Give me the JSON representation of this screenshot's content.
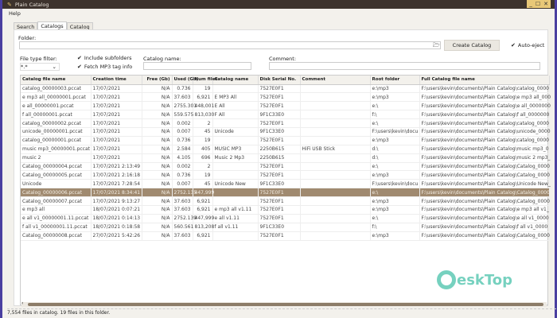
{
  "window": {
    "title": "Plain Catalog",
    "app_icon": "feather-icon",
    "controls": [
      "_",
      "☐",
      "✕"
    ]
  },
  "menu": {
    "items": [
      "Help"
    ]
  },
  "tabs": [
    "Search",
    "Catalogs",
    "Catalog"
  ],
  "form": {
    "folder_label": "Folder:",
    "folder_value": "",
    "browse_icon": "folder-open-icon",
    "create_button": "Create Catalog",
    "auto_eject": "Auto-eject",
    "auto_eject_checked": true,
    "file_type_label": "File type filter:",
    "file_type_value": "*.*",
    "include_subfolders": "Include subfolders",
    "include_subfolders_checked": true,
    "fetch_mp3": "Fetch MP3 tag info",
    "fetch_mp3_checked": true,
    "catalog_name_label": "Catalog name:",
    "catalog_name_value": "",
    "comment_label": "Comment:",
    "comment_value": ""
  },
  "table": {
    "columns": [
      "Catalog file name",
      "Creation time",
      "Free (Gb)",
      "Used (Gb)",
      "Num files",
      "Catalog name",
      "Disk Serial No.",
      "Comment",
      "Root folder",
      "Full Catalog file name"
    ],
    "selected_row": 12,
    "rows": [
      [
        "catalog_00000003.pccat",
        "17/07/2021",
        "N/A",
        "0.736",
        "19",
        "",
        "7527E0F1",
        "",
        "e:\\mp3",
        "F:\\users\\kevin\\documents\\Plain Catalog\\catalog_0000"
      ],
      [
        "e mp3 all_00000001.pccat",
        "17/07/2021",
        "N/A",
        "37.603",
        "6,921",
        "E MP3 All",
        "7527E0F1",
        "",
        "e:\\mp3",
        "F:\\users\\kevin\\documents\\Plain Catalog\\e mp3 all_000"
      ],
      [
        "e all_00000001.pccat",
        "17/07/2021",
        "N/A",
        "2755.301",
        "448,001",
        "E All",
        "7527E0F1",
        "",
        "e:\\",
        "F:\\users\\kevin\\documents\\Plain Catalog\\e all_0000000"
      ],
      [
        "f all_00000001.pccat",
        "17/07/2021",
        "N/A",
        "559.575",
        "813,030",
        "F All",
        "9F1C33E0",
        "",
        "f:\\",
        "F:\\users\\kevin\\documents\\Plain Catalog\\f all_0000000"
      ],
      [
        "catalog_00000002.pccat",
        "17/07/2021",
        "N/A",
        "0.002",
        "2",
        "",
        "7527E0F1",
        "",
        "e:\\",
        "F:\\users\\kevin\\documents\\Plain Catalog\\catalog_0000"
      ],
      [
        "unicode_00000001.pccat",
        "17/07/2021",
        "N/A",
        "0.007",
        "45",
        "Unicode",
        "9F1C33E0",
        "",
        "F:\\users\\kevin\\docu",
        "F:\\users\\kevin\\documents\\Plain Catalog\\unicode_0000"
      ],
      [
        "catalog_00000001.pccat",
        "17/07/2021",
        "N/A",
        "0.736",
        "19",
        "",
        "7527E0F1",
        "",
        "e:\\mp3",
        "F:\\users\\kevin\\documents\\Plain Catalog\\catalog_0000"
      ],
      [
        "music mp3_00000001.pccat",
        "17/07/2021",
        "N/A",
        "2.584",
        "405",
        "MUSIC MP3",
        "2250B615",
        "HiFi USB Stick",
        "d:\\",
        "F:\\users\\kevin\\documents\\Plain Catalog\\music mp3_0"
      ],
      [
        "music 2",
        "17/07/2021",
        "N/A",
        "4.105",
        "696",
        "Music 2 Mp3",
        "2250B615",
        "",
        "d:\\",
        "F:\\users\\kevin\\documents\\Plain Catalog\\music 2 mp3_"
      ],
      [
        "Catalog_00000004.pccat",
        "17/07/2021 2:13:49",
        "N/A",
        "0.002",
        "2",
        "",
        "7527E0F1",
        "",
        "e:\\",
        "F:\\users\\kevin\\documents\\Plain Catalog\\Catalog_0000"
      ],
      [
        "Catalog_00000005.pccat",
        "17/07/2021 2:16:18",
        "N/A",
        "0.736",
        "19",
        "",
        "7527E0F1",
        "",
        "e:\\mp3",
        "F:\\users\\kevin\\documents\\Plain Catalog\\Catalog_0000"
      ],
      [
        "Unicode",
        "17/07/2021 7:28:54",
        "N/A",
        "0.007",
        "45",
        "Unicode New",
        "9F1C33E0",
        "",
        "F:\\users\\kevin\\docu",
        "F:\\users\\kevin\\documents\\Plain Catalog\\Unicode New_"
      ],
      [
        "Catalog_00000006.pccat",
        "17/07/2021 8:34:41",
        "N/A",
        "2752.135",
        "447,999",
        "",
        "7527E0F1",
        "",
        "e:\\",
        "F:\\users\\kevin\\documents\\Plain Catalog\\Catalog_0000"
      ],
      [
        "Catalog_00000007.pccat",
        "17/07/2021 9:13:27",
        "N/A",
        "37.603",
        "6,921",
        "",
        "7527E0F1",
        "",
        "e:\\mp3",
        "F:\\users\\kevin\\documents\\Plain Catalog\\Catalog_0000"
      ],
      [
        "e mp3 all",
        "18/07/2021 0:07:21",
        "N/A",
        "37.603",
        "6,921",
        "e mp3 all v1.11",
        "7527E0F1",
        "",
        "e:\\mp3",
        "F:\\users\\kevin\\documents\\Plain Catalog\\e mp3 all v1_"
      ],
      [
        "e all v1_00000001.11.pccat",
        "18/07/2021 0:14:13",
        "N/A",
        "2752.139",
        "447,999",
        "e all v1.11",
        "7527E0F1",
        "",
        "e:\\",
        "F:\\users\\kevin\\documents\\Plain Catalog\\e all v1_0000"
      ],
      [
        "f all v1_00000001.11.pccat",
        "18/07/2021 0:18:58",
        "N/A",
        "560.561",
        "813,208",
        "f all v1.11",
        "9F1C33E0",
        "",
        "f:\\",
        "F:\\users\\kevin\\documents\\Plain Catalog\\f all v1_0000"
      ],
      [
        "Catalog_00000008.pccat",
        "27/07/2021 5:42:26",
        "N/A",
        "37.603",
        "6,921",
        "",
        "7527E0F1",
        "",
        "e:\\mp3",
        "F:\\users\\kevin\\documents\\Plain Catalog\\Catalog_0000"
      ]
    ]
  },
  "status": "7,554 files in catalog.   19 files in this folder.",
  "watermark": "DeskTop",
  "colors": {
    "titlebar": "#3d332d",
    "selection": "#a08a70",
    "watermark": "#5fc9b5"
  }
}
